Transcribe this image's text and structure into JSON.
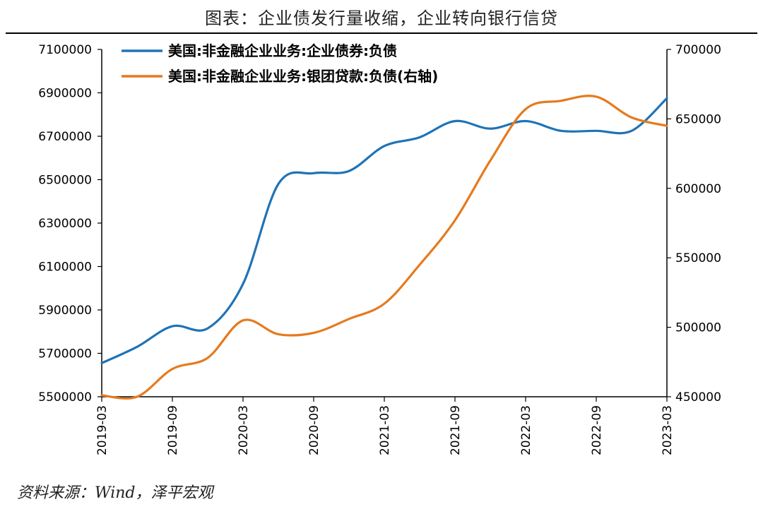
{
  "title": "图表：企业债发行量收缩，企业转向银行信贷",
  "source": "资料来源：Wind，泽平宏观",
  "colors": {
    "series1": "#1f73b7",
    "series2": "#e57a1f"
  },
  "chart_data": {
    "type": "line",
    "x_ticks": [
      "2019-03",
      "2019-09",
      "2020-03",
      "2020-09",
      "2021-03",
      "2021-09",
      "2022-03",
      "2022-09",
      "2023-03"
    ],
    "ylim_left": [
      5500000,
      7100000
    ],
    "ylim_right": [
      450000,
      700000
    ],
    "y_left_ticks": [
      "7100000",
      "6900000",
      "6700000",
      "6500000",
      "6300000",
      "6100000",
      "5900000",
      "5700000",
      "5500000"
    ],
    "y_right_ticks": [
      "700000",
      "650000",
      "600000",
      "550000",
      "500000",
      "450000"
    ],
    "legend_position": "top-left",
    "series": [
      {
        "name": "美国:非金融企业业务:企业债券:负债",
        "axis": "left",
        "x": [
          "2019-03",
          "2019-06",
          "2019-09",
          "2019-12",
          "2020-03",
          "2020-06",
          "2020-09",
          "2020-12",
          "2021-03",
          "2021-06",
          "2021-09",
          "2021-12",
          "2022-03",
          "2022-06",
          "2022-09",
          "2022-12",
          "2023-03"
        ],
        "values": [
          5655000,
          5730000,
          5825000,
          5815000,
          6020000,
          6480000,
          6530000,
          6540000,
          6655000,
          6695000,
          6770000,
          6735000,
          6770000,
          6725000,
          6725000,
          6725000,
          6875000
        ]
      },
      {
        "name": "美国:非金融企业业务:银团贷款:负债(右轴)",
        "axis": "right",
        "x": [
          "2019-03",
          "2019-06",
          "2019-09",
          "2019-12",
          "2020-03",
          "2020-06",
          "2020-09",
          "2020-12",
          "2021-03",
          "2021-06",
          "2021-09",
          "2021-12",
          "2022-03",
          "2022-06",
          "2022-09",
          "2022-12",
          "2023-03"
        ],
        "values": [
          451000,
          450000,
          470000,
          478000,
          505000,
          495000,
          496000,
          506000,
          517000,
          545000,
          577000,
          620000,
          657000,
          663000,
          666000,
          651000,
          645000
        ]
      }
    ]
  }
}
